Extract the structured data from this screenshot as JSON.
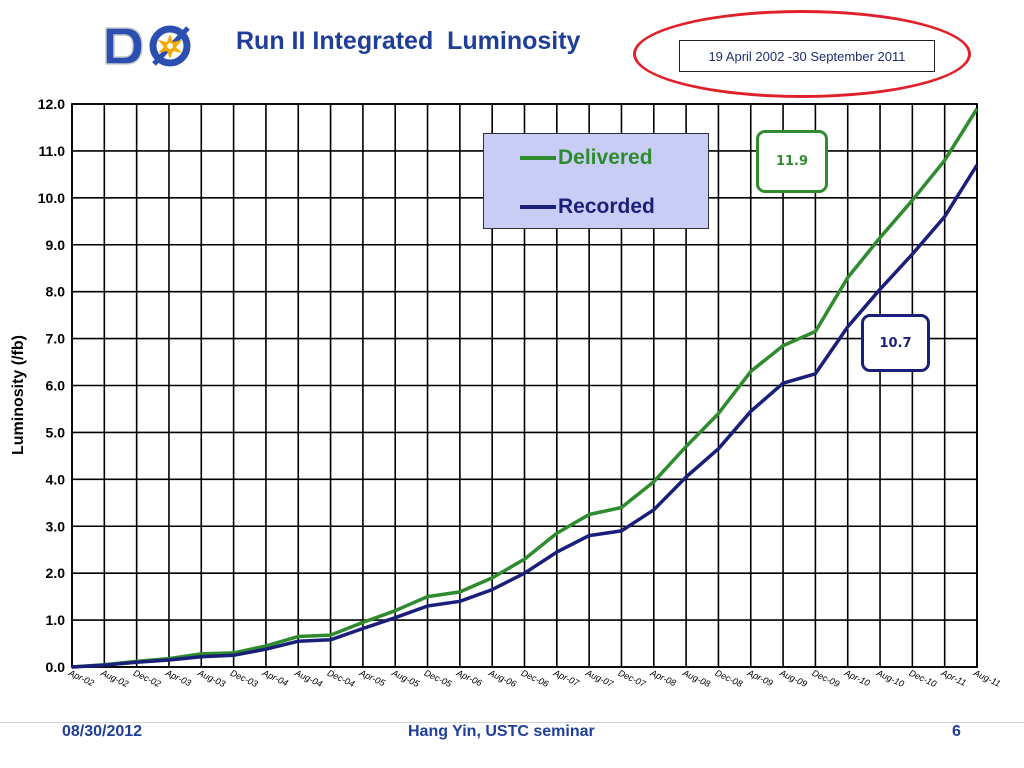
{
  "slide": {
    "date": "08/30/2012",
    "presenter": "Hang Yin, USTC seminar",
    "page_number": "6"
  },
  "logo": {
    "text": "DØ",
    "colors": {
      "letters": "#2a4fb0",
      "star": "#f5a800"
    }
  },
  "date_range": "19 April 2002 -30 September 2011",
  "colors": {
    "delivered": "#2e8b2e",
    "recorded": "#1a1f7a",
    "title": "#1f3e9a",
    "ellipse": "#e0202a",
    "legend_bg": "#c9cdf5"
  },
  "chart_data": {
    "type": "line",
    "title": "Run II Integrated  Luminosity",
    "ylabel": "Luminosity (/fb)",
    "xlabel": "",
    "ylim": [
      0,
      12
    ],
    "yticks": [
      "0.0",
      "1.0",
      "2.0",
      "3.0",
      "4.0",
      "5.0",
      "6.0",
      "7.0",
      "8.0",
      "9.0",
      "10.0",
      "11.0",
      "12.0"
    ],
    "grid": true,
    "legend_position": "top-center",
    "categories": [
      "Apr-02",
      "Aug-02",
      "Dec-02",
      "Apr-03",
      "Aug-03",
      "Dec-03",
      "Apr-04",
      "Aug-04",
      "Dec-04",
      "Apr-05",
      "Aug-05",
      "Dec-05",
      "Apr-06",
      "Aug-06",
      "Dec-06",
      "Apr-07",
      "Aug-07",
      "Dec-07",
      "Apr-08",
      "Aug-08",
      "Dec-08",
      "Apr-09",
      "Aug-09",
      "Dec-09",
      "Apr-10",
      "Aug-10",
      "Dec-10",
      "Apr-11",
      "Aug-11"
    ],
    "series": [
      {
        "name": "Delivered",
        "values": [
          0.0,
          0.05,
          0.12,
          0.18,
          0.28,
          0.3,
          0.45,
          0.65,
          0.68,
          0.95,
          1.2,
          1.5,
          1.6,
          1.9,
          2.3,
          2.85,
          3.25,
          3.4,
          3.95,
          4.7,
          5.4,
          6.3,
          6.85,
          7.15,
          8.3,
          9.15,
          9.95,
          10.8,
          11.9
        ],
        "color": "#2e8b2e"
      },
      {
        "name": "Recorded",
        "values": [
          0.0,
          0.04,
          0.1,
          0.15,
          0.22,
          0.25,
          0.38,
          0.55,
          0.58,
          0.82,
          1.05,
          1.3,
          1.4,
          1.65,
          2.0,
          2.45,
          2.8,
          2.9,
          3.35,
          4.05,
          4.65,
          5.45,
          6.05,
          6.25,
          7.25,
          8.05,
          8.8,
          9.6,
          10.7
        ],
        "color": "#1a1f7a"
      }
    ],
    "annotations": [
      {
        "text": "11.9",
        "series": "Delivered"
      },
      {
        "text": "10.7",
        "series": "Recorded"
      }
    ]
  }
}
